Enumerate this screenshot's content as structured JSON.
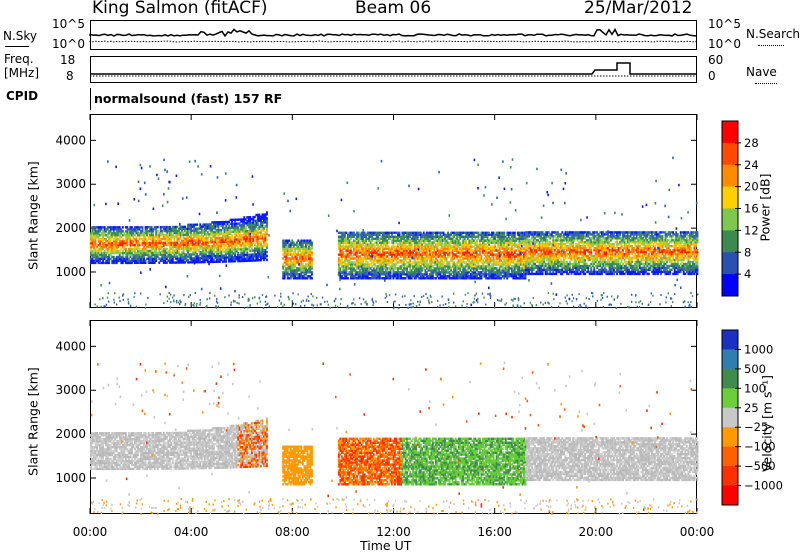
{
  "header": {
    "title": "King Salmon (fitACF)",
    "beam": "Beam 06",
    "date": "25/Mar/2012"
  },
  "noise_panel": {
    "left_label": "N.Sky",
    "left_ticks": [
      "10^5",
      "10^0"
    ],
    "right_ticks": [
      "10^5",
      "10^0"
    ],
    "right_label": "N.Search"
  },
  "freq_panel": {
    "left_label_1": "Freq.",
    "left_label_2": "[MHz]",
    "left_ticks": [
      "18",
      "8"
    ],
    "right_ticks": [
      "60",
      "0"
    ],
    "right_label": "Nave"
  },
  "cpid": {
    "label": "CPID",
    "mode": "normalsound (fast) 157 RF"
  },
  "chart_data": [
    {
      "type": "heatmap",
      "name": "power-panel",
      "ylabel": "Slant Range [km]",
      "xlabel": "Time UT",
      "x_ticks": [
        "00:00",
        "04:00",
        "08:00",
        "12:00",
        "16:00",
        "20:00",
        "00:00"
      ],
      "x_range_hours": [
        0,
        24
      ],
      "y_ticks": [
        1000,
        2000,
        3000,
        4000
      ],
      "y_range_km": [
        180,
        4600
      ],
      "colorbar": {
        "label": "Power [dB]",
        "ticks": [
          "28",
          "24",
          "20",
          "16",
          "12",
          "8",
          "4"
        ],
        "colors": [
          "#ff0000",
          "#ff4a00",
          "#ff8c00",
          "#ffd000",
          "#7ec850",
          "#3c8a50",
          "#2a50b0",
          "#0000ff"
        ]
      }
    },
    {
      "type": "heatmap",
      "name": "velocity-panel",
      "ylabel": "Slant Range [km]",
      "xlabel": "Time UT",
      "x_ticks": [
        "00:00",
        "04:00",
        "08:00",
        "12:00",
        "16:00",
        "20:00",
        "00:00"
      ],
      "x_range_hours": [
        0,
        24
      ],
      "y_ticks": [
        1000,
        2000,
        3000,
        4000
      ],
      "y_range_km": [
        180,
        4600
      ],
      "colorbar": {
        "label": "Velocity [m s⁻¹]",
        "ticks": [
          "1000",
          "500",
          "100",
          "25",
          "−25",
          "−100",
          "−500",
          "−1000"
        ],
        "colors": [
          "#1a30c0",
          "#2e7fb0",
          "#3f8c4e",
          "#6ccf3a",
          "#c8c8c8",
          "#ff9a00",
          "#ff6000",
          "#ff3000",
          "#ff0000"
        ]
      }
    }
  ],
  "footer": {
    "xlabel": "Time UT"
  }
}
